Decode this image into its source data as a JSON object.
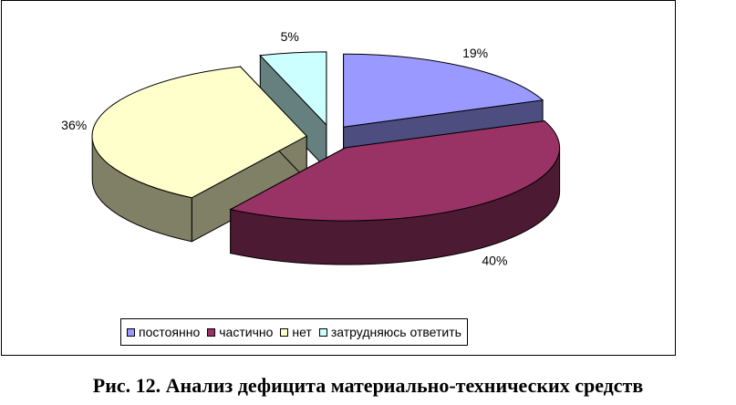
{
  "chart_data": {
    "type": "pie",
    "categories": [
      "постоянно",
      "частично",
      "нет",
      "затрудняюсь ответить"
    ],
    "values": [
      19,
      40,
      36,
      5
    ],
    "value_labels": [
      "19%",
      "40%",
      "36%",
      "5%"
    ],
    "colors": [
      "#9999FF",
      "#993366",
      "#FFFFCC",
      "#CCFFFF"
    ],
    "side_colors": [
      "#4D4D80",
      "#4D1A33",
      "#808066",
      "#668080"
    ],
    "legend_position": "bottom",
    "exploded": true,
    "view": "3d"
  },
  "caption": "Рис. 12. Анализ дефицита материально-технических средств"
}
